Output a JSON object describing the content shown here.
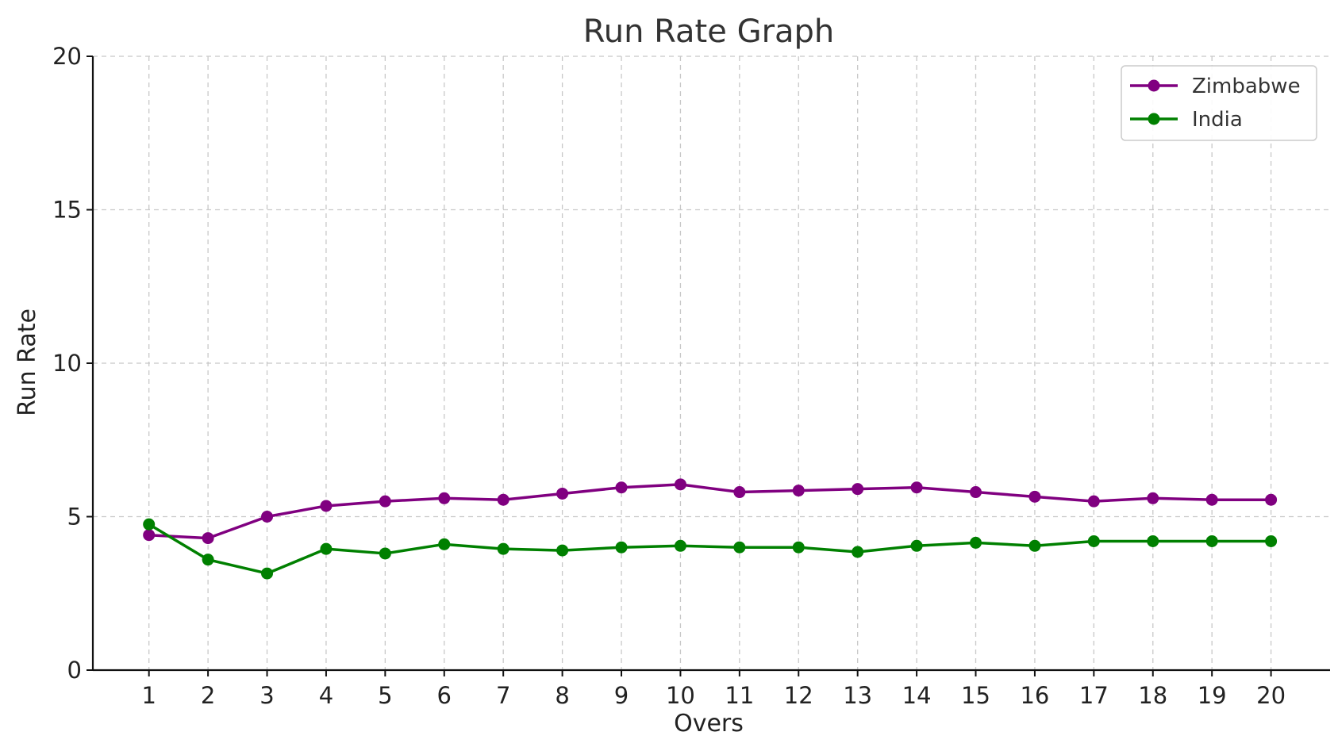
{
  "chart_data": {
    "type": "line",
    "title": "Run Rate Graph",
    "xlabel": "Overs",
    "ylabel": "Run Rate",
    "x": [
      1,
      2,
      3,
      4,
      5,
      6,
      7,
      8,
      9,
      10,
      11,
      12,
      13,
      14,
      15,
      16,
      17,
      18,
      19,
      20
    ],
    "x_tick_labels": [
      "1",
      "2",
      "3",
      "4",
      "5",
      "6",
      "7",
      "8",
      "9",
      "10",
      "11",
      "12",
      "13",
      "14",
      "15",
      "16",
      "17",
      "18",
      "19",
      "20"
    ],
    "ylim": [
      0,
      20
    ],
    "y_ticks": [
      0,
      5,
      10,
      15,
      20
    ],
    "y_tick_labels": [
      "0",
      "5",
      "10",
      "15",
      "20"
    ],
    "grid": true,
    "legend_position": "top-right",
    "series": [
      {
        "name": "Zimbabwe",
        "color": "#800080",
        "marker": "circle",
        "values": [
          4.4,
          4.3,
          5.0,
          5.35,
          5.5,
          5.6,
          5.55,
          5.75,
          5.95,
          6.05,
          5.8,
          5.85,
          5.9,
          5.95,
          5.8,
          5.65,
          5.5,
          5.6,
          5.55,
          5.55
        ]
      },
      {
        "name": "India",
        "color": "#008000",
        "marker": "circle",
        "values": [
          4.75,
          3.6,
          3.15,
          3.95,
          3.8,
          4.1,
          3.95,
          3.9,
          4.0,
          4.05,
          4.0,
          4.0,
          3.85,
          4.05,
          4.15,
          4.05,
          4.2,
          4.2,
          4.2,
          4.2
        ]
      }
    ]
  }
}
